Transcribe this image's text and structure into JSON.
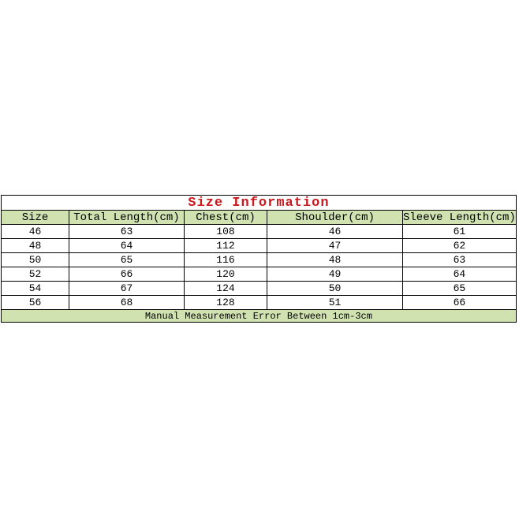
{
  "title": "Size Information",
  "table": {
    "headers": [
      "Size",
      "Total Length(cm)",
      "Chest(cm)",
      "Shoulder(cm)",
      "Sleeve Length(cm)"
    ],
    "rows": [
      [
        "46",
        "63",
        "108",
        "46",
        "61"
      ],
      [
        "48",
        "64",
        "112",
        "47",
        "62"
      ],
      [
        "50",
        "65",
        "116",
        "48",
        "63"
      ],
      [
        "52",
        "66",
        "120",
        "49",
        "64"
      ],
      [
        "54",
        "67",
        "124",
        "50",
        "65"
      ],
      [
        "56",
        "68",
        "128",
        "51",
        "66"
      ]
    ],
    "footer": "Manual Measurement Error Between 1cm-3cm"
  },
  "colors": {
    "title_red": "#c8191e",
    "row_green": "#cfe2b0",
    "border": "#000000",
    "text": "#000000",
    "page_bg": "#ffffff"
  },
  "chart_data": {
    "type": "table",
    "title": "Size Information",
    "columns": [
      "Size",
      "Total Length(cm)",
      "Chest(cm)",
      "Shoulder(cm)",
      "Sleeve Length(cm)"
    ],
    "rows": [
      [
        46,
        63,
        108,
        46,
        61
      ],
      [
        48,
        64,
        112,
        47,
        62
      ],
      [
        50,
        65,
        116,
        48,
        63
      ],
      [
        52,
        66,
        120,
        49,
        64
      ],
      [
        54,
        67,
        124,
        50,
        65
      ],
      [
        56,
        68,
        128,
        51,
        66
      ]
    ],
    "footnote": "Manual Measurement Error Between 1cm-3cm",
    "layout_hints": {
      "title_color": "#c8191e",
      "header_row_bg": "#cfe2b0",
      "footnote_row_bg": "#cfe2b0",
      "grid": "on"
    }
  }
}
